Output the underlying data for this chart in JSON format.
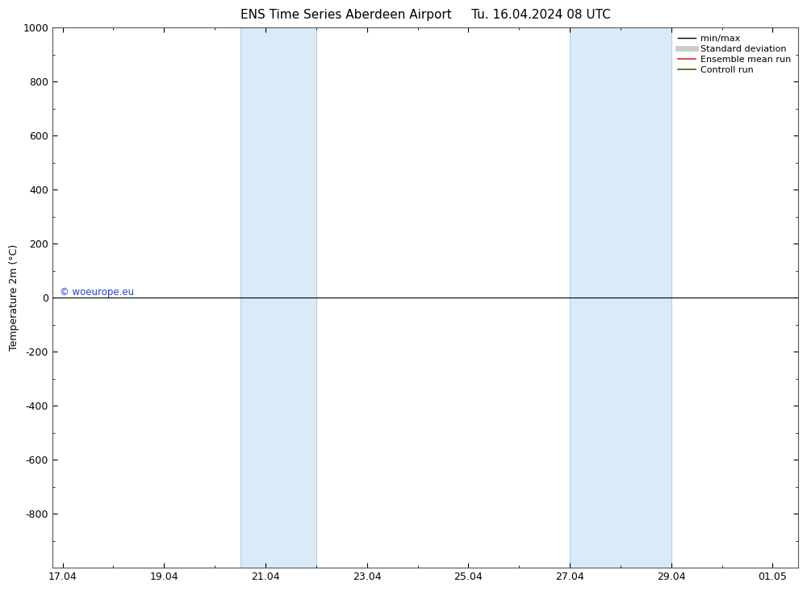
{
  "title_left": "ENS Time Series Aberdeen Airport",
  "title_right": "Tu. 16.04.2024 08 UTC",
  "ylabel": "Temperature 2m (°C)",
  "ylim_top": -1000,
  "ylim_bottom": 1000,
  "yticks": [
    -800,
    -600,
    -400,
    -200,
    0,
    200,
    400,
    600,
    800,
    1000
  ],
  "xtick_labels": [
    "17.04",
    "19.04",
    "21.04",
    "23.04",
    "25.04",
    "27.04",
    "29.04",
    "01.05"
  ],
  "xtick_positions": [
    0,
    2,
    4,
    6,
    8,
    10,
    12,
    14
  ],
  "xlim": [
    -0.2,
    14.5
  ],
  "shaded_bands": [
    {
      "start": 3.5,
      "end": 5.0
    },
    {
      "start": 10.0,
      "end": 12.0
    }
  ],
  "band_color": "#daeaf7",
  "band_edge_color": "#aacde8",
  "background_color": "#ffffff",
  "plot_bg_color": "#ffffff",
  "legend_items": [
    {
      "label": "min/max",
      "color": "#000000",
      "lw": 1.0
    },
    {
      "label": "Standard deviation",
      "color": "#cccccc",
      "lw": 5
    },
    {
      "label": "Ensemble mean run",
      "color": "#dd2222",
      "lw": 1.2
    },
    {
      "label": "Controll run",
      "color": "#336600",
      "lw": 1.2
    }
  ],
  "watermark": "© woeurope.eu",
  "watermark_color": "#2244cc",
  "zero_line_color": "#000000",
  "zero_line_lw": 0.8,
  "title_fontsize": 11,
  "ylabel_fontsize": 9,
  "tick_fontsize": 9,
  "legend_fontsize": 8,
  "spine_color": "#555555",
  "spine_lw": 0.8
}
